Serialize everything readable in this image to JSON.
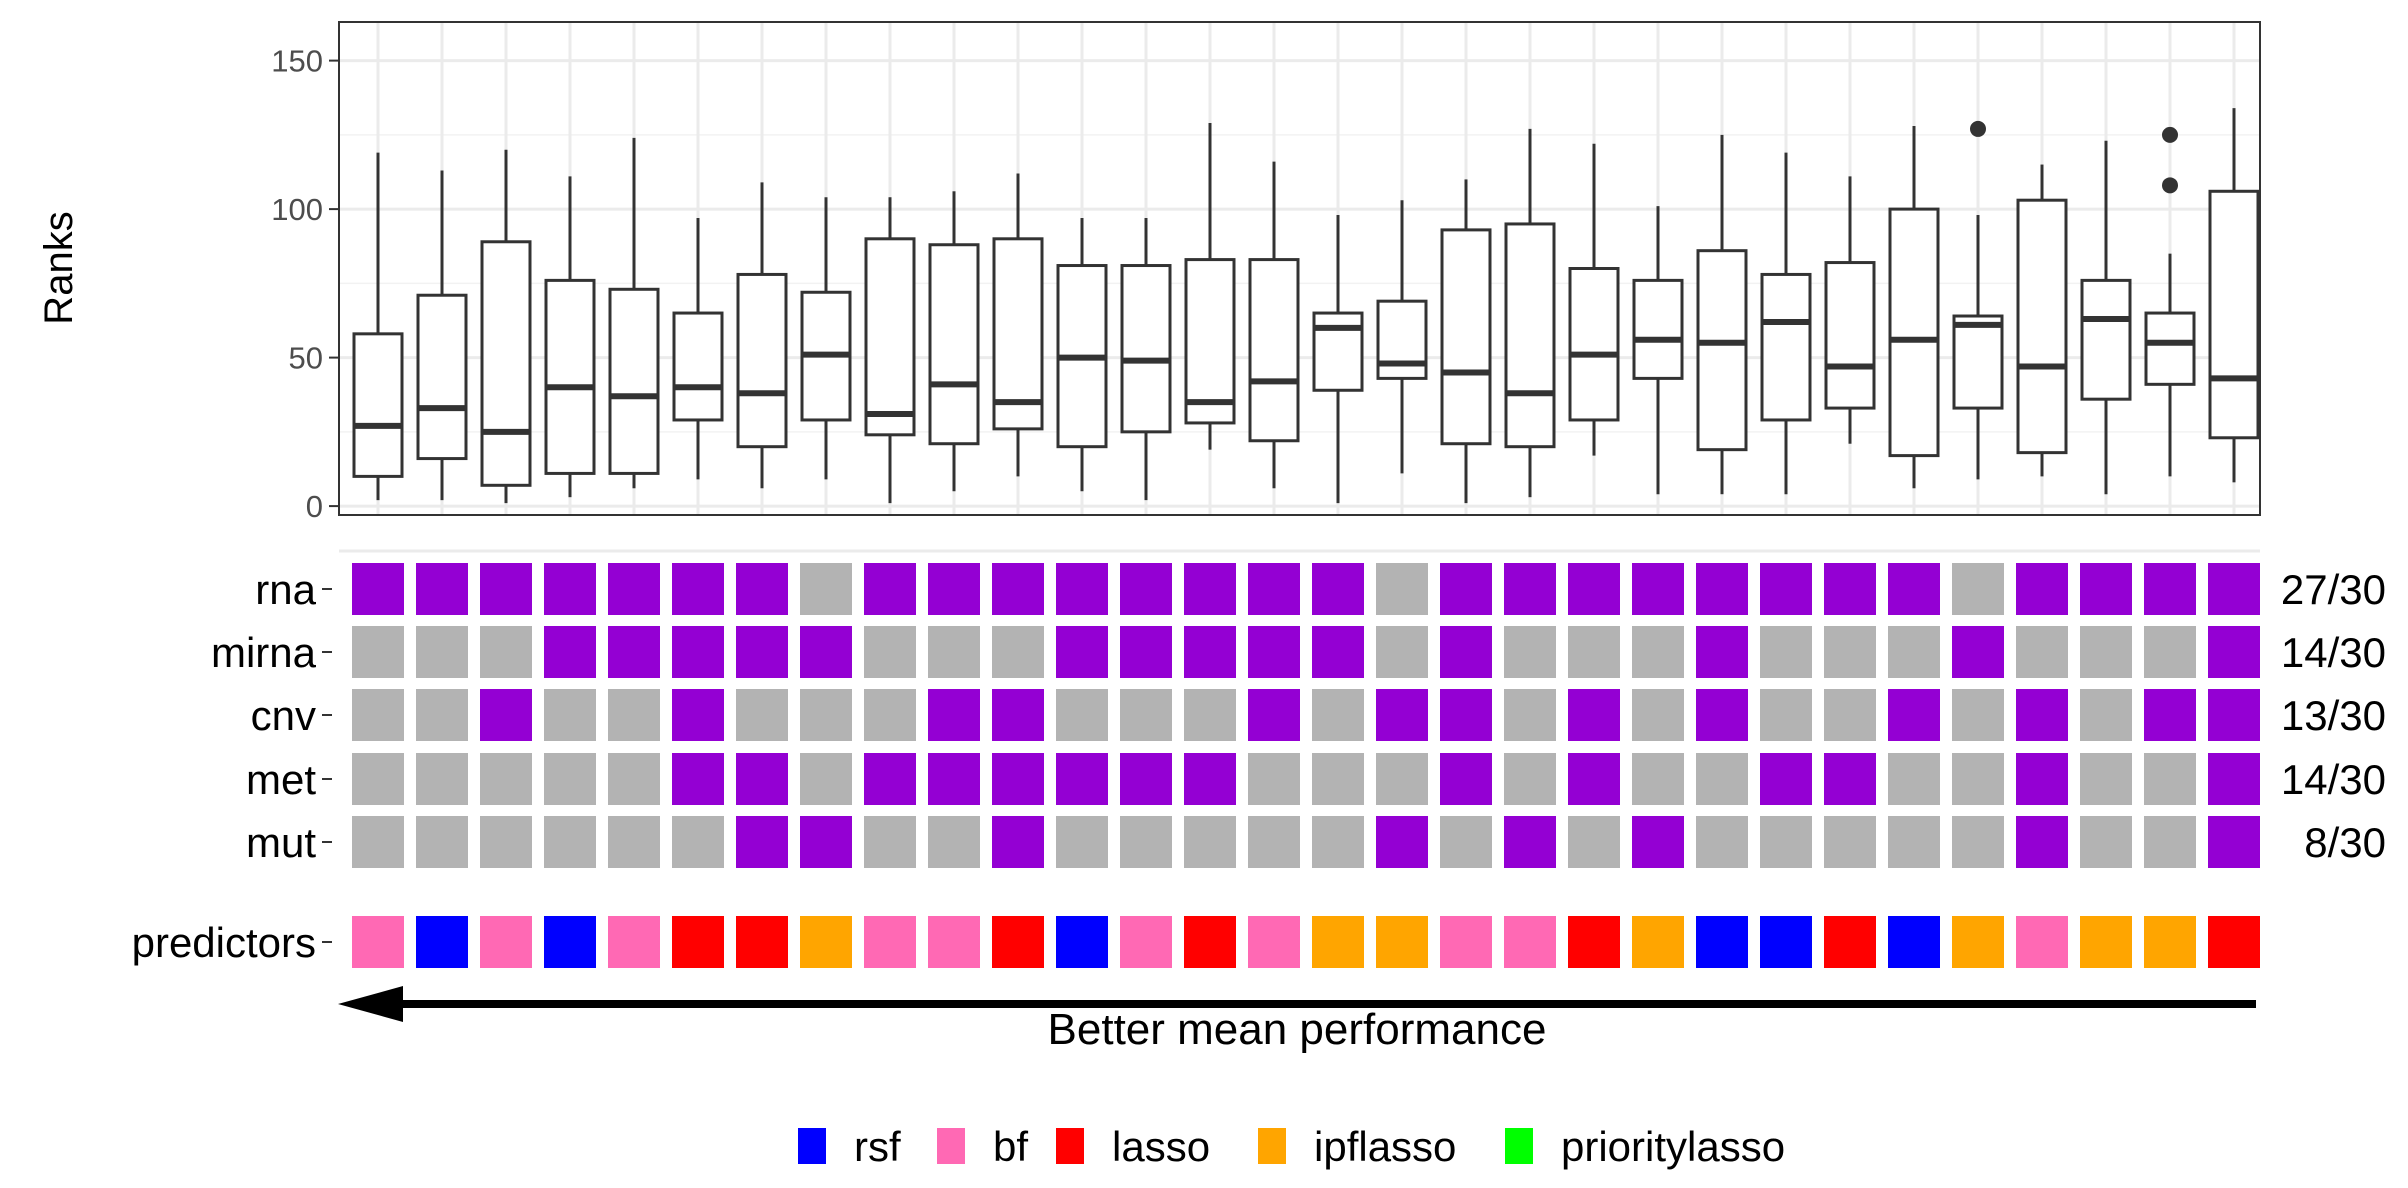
{
  "chart_data": [
    {
      "type": "boxplot",
      "ylabel": "Ranks",
      "xlabel": "",
      "ylim": [
        -3,
        163
      ],
      "yticks": [
        0,
        50,
        100,
        150
      ],
      "grid": true,
      "boxes": [
        {
          "min": 2,
          "q1": 10,
          "median": 27,
          "q3": 58,
          "max": 119,
          "outliers": []
        },
        {
          "min": 2,
          "q1": 16,
          "median": 33,
          "q3": 71,
          "max": 113,
          "outliers": []
        },
        {
          "min": 1,
          "q1": 7,
          "median": 25,
          "q3": 89,
          "max": 120,
          "outliers": []
        },
        {
          "min": 3,
          "q1": 11,
          "median": 40,
          "q3": 76,
          "max": 111,
          "outliers": []
        },
        {
          "min": 6,
          "q1": 11,
          "median": 37,
          "q3": 73,
          "max": 124,
          "outliers": []
        },
        {
          "min": 9,
          "q1": 29,
          "median": 40,
          "q3": 65,
          "max": 97,
          "outliers": []
        },
        {
          "min": 6,
          "q1": 20,
          "median": 38,
          "q3": 78,
          "max": 109,
          "outliers": []
        },
        {
          "min": 9,
          "q1": 29,
          "median": 51,
          "q3": 72,
          "max": 104,
          "outliers": []
        },
        {
          "min": 1,
          "q1": 24,
          "median": 31,
          "q3": 90,
          "max": 104,
          "outliers": []
        },
        {
          "min": 5,
          "q1": 21,
          "median": 41,
          "q3": 88,
          "max": 106,
          "outliers": []
        },
        {
          "min": 10,
          "q1": 26,
          "median": 35,
          "q3": 90,
          "max": 112,
          "outliers": []
        },
        {
          "min": 5,
          "q1": 20,
          "median": 50,
          "q3": 81,
          "max": 97,
          "outliers": []
        },
        {
          "min": 2,
          "q1": 25,
          "median": 49,
          "q3": 81,
          "max": 97,
          "outliers": []
        },
        {
          "min": 19,
          "q1": 28,
          "median": 35,
          "q3": 83,
          "max": 129,
          "outliers": []
        },
        {
          "min": 6,
          "q1": 22,
          "median": 42,
          "q3": 83,
          "max": 116,
          "outliers": []
        },
        {
          "min": 1,
          "q1": 39,
          "median": 60,
          "q3": 65,
          "max": 98,
          "outliers": []
        },
        {
          "min": 11,
          "q1": 43,
          "median": 48,
          "q3": 69,
          "max": 103,
          "outliers": []
        },
        {
          "min": 1,
          "q1": 21,
          "median": 45,
          "q3": 93,
          "max": 110,
          "outliers": []
        },
        {
          "min": 3,
          "q1": 20,
          "median": 38,
          "q3": 95,
          "max": 127,
          "outliers": []
        },
        {
          "min": 17,
          "q1": 29,
          "median": 51,
          "q3": 80,
          "max": 122,
          "outliers": []
        },
        {
          "min": 4,
          "q1": 43,
          "median": 56,
          "q3": 76,
          "max": 101,
          "outliers": []
        },
        {
          "min": 4,
          "q1": 19,
          "median": 55,
          "q3": 86,
          "max": 125,
          "outliers": []
        },
        {
          "min": 4,
          "q1": 29,
          "median": 62,
          "q3": 78,
          "max": 119,
          "outliers": []
        },
        {
          "min": 21,
          "q1": 33,
          "median": 47,
          "q3": 82,
          "max": 111,
          "outliers": []
        },
        {
          "min": 6,
          "q1": 17,
          "median": 56,
          "q3": 100,
          "max": 128,
          "outliers": []
        },
        {
          "min": 9,
          "q1": 33,
          "median": 61,
          "q3": 64,
          "max": 98,
          "outliers": [
            127
          ]
        },
        {
          "min": 10,
          "q1": 18,
          "median": 47,
          "q3": 103,
          "max": 115,
          "outliers": []
        },
        {
          "min": 4,
          "q1": 36,
          "median": 63,
          "q3": 76,
          "max": 123,
          "outliers": []
        },
        {
          "min": 10,
          "q1": 41,
          "median": 55,
          "q3": 65,
          "max": 85,
          "outliers": [
            108,
            125
          ]
        },
        {
          "min": 8,
          "q1": 23,
          "median": 43,
          "q3": 106,
          "max": 134,
          "outliers": []
        }
      ]
    },
    {
      "type": "heatmap",
      "rows": [
        {
          "label": "rna",
          "count": "27/30",
          "cells": [
            1,
            1,
            1,
            1,
            1,
            1,
            1,
            0,
            1,
            1,
            1,
            1,
            1,
            1,
            1,
            1,
            0,
            1,
            1,
            1,
            1,
            1,
            1,
            1,
            1,
            0,
            1,
            1,
            1,
            1
          ]
        },
        {
          "label": "mirna",
          "count": "14/30",
          "cells": [
            0,
            0,
            0,
            1,
            1,
            1,
            1,
            1,
            0,
            0,
            0,
            1,
            1,
            1,
            1,
            1,
            0,
            1,
            0,
            0,
            0,
            1,
            0,
            0,
            0,
            1,
            0,
            0,
            0,
            1
          ]
        },
        {
          "label": "cnv",
          "count": "13/30",
          "cells": [
            0,
            0,
            1,
            0,
            0,
            1,
            0,
            0,
            0,
            1,
            1,
            0,
            0,
            0,
            1,
            0,
            1,
            1,
            0,
            1,
            0,
            1,
            0,
            0,
            1,
            0,
            1,
            0,
            1,
            1
          ]
        },
        {
          "label": "met",
          "count": "14/30",
          "cells": [
            0,
            0,
            0,
            0,
            0,
            1,
            1,
            0,
            1,
            1,
            1,
            1,
            1,
            1,
            0,
            0,
            0,
            1,
            0,
            1,
            0,
            0,
            1,
            1,
            0,
            0,
            1,
            0,
            0,
            1
          ]
        },
        {
          "label": "mut",
          "count": "8/30",
          "cells": [
            0,
            0,
            0,
            0,
            0,
            0,
            1,
            1,
            0,
            0,
            1,
            0,
            0,
            0,
            0,
            0,
            1,
            0,
            1,
            0,
            1,
            0,
            0,
            0,
            0,
            0,
            1,
            0,
            0,
            1
          ]
        }
      ],
      "colors": {
        "included": "#9400D3",
        "excluded": "#B3B3B3"
      }
    },
    {
      "type": "categorical-strip",
      "label": "predictors",
      "values": [
        "bf",
        "rsf",
        "bf",
        "rsf",
        "bf",
        "lasso",
        "lasso",
        "ipflasso",
        "bf",
        "bf",
        "lasso",
        "rsf",
        "bf",
        "lasso",
        "bf",
        "ipflasso",
        "ipflasso",
        "bf",
        "bf",
        "lasso",
        "ipflasso",
        "rsf",
        "rsf",
        "lasso",
        "rsf",
        "ipflasso",
        "bf",
        "ipflasso",
        "ipflasso",
        "lasso"
      ],
      "arrow_label": "Better mean performance",
      "legend": {
        "position": "bottom",
        "entries": [
          {
            "name": "rsf",
            "color": "#0000FF"
          },
          {
            "name": "bf",
            "color": "#FF69B4"
          },
          {
            "name": "lasso",
            "color": "#FF0000"
          },
          {
            "name": "ipflasso",
            "color": "#FFA500"
          },
          {
            "name": "prioritylasso",
            "color": "#00FF00"
          }
        ]
      }
    }
  ]
}
